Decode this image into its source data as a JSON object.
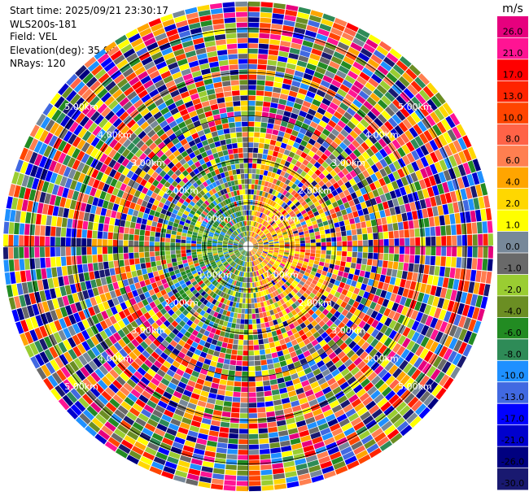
{
  "info": {
    "start_time": "Start time: 2025/09/21 23:30:17",
    "instrument": "WLS200s-181",
    "field": "Field: VEL",
    "elevation": "Elevation(deg): 35.00",
    "nrays": "NRays: 120"
  },
  "chart_data": {
    "type": "heatmap",
    "projection": "polar PPI",
    "field": "VEL",
    "nrays": 120,
    "range_rings_km": [
      1,
      2,
      3,
      4,
      5
    ],
    "ring_labels": [
      "1.00km",
      "2.00km",
      "3.00km",
      "4.00km",
      "5.00km"
    ],
    "max_range_km": 5.6,
    "colorbar": {
      "unit": "m/s",
      "tick_labels": [
        "26.0",
        "21.0",
        "17.0",
        "13.0",
        "10.0",
        "8.0",
        "6.0",
        "4.0",
        "2.0",
        "1.0",
        "0.0",
        "-1.0",
        "-2.0",
        "-4.0",
        "-6.0",
        "-8.0",
        "-10.0",
        "-13.0",
        "-17.0",
        "-21.0",
        "-26.0",
        "-30.0"
      ],
      "colors": [
        "#e6007e",
        "#ff1493",
        "#ff0000",
        "#ff2400",
        "#ff4500",
        "#ff6347",
        "#ff7f50",
        "#ffa500",
        "#ffd700",
        "#ffff00",
        "#778899",
        "#696969",
        "#9acd32",
        "#6b8e23",
        "#228b22",
        "#2e8b57",
        "#1e90ff",
        "#4169e1",
        "#0000ff",
        "#0000cd",
        "#000080",
        "#191970"
      ]
    },
    "pattern_note_colors": {
      "east": [
        "#ffa500",
        "#ff6347",
        "#ffd700",
        "#ffff00",
        "#ff7f50"
      ],
      "west": [
        "#228b22",
        "#6b8e23",
        "#9acd32",
        "#2e8b57",
        "#1e90ff"
      ]
    }
  }
}
